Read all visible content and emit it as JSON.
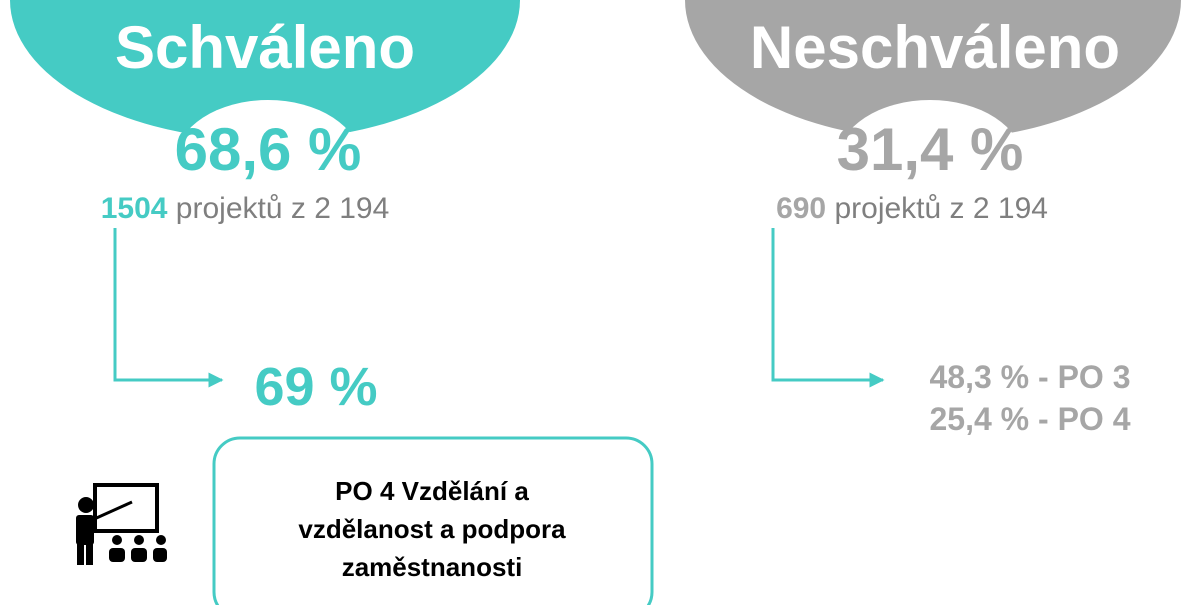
{
  "approved": {
    "title": "Schváleno",
    "percent": "68,6 %",
    "count": "1504",
    "count_text": " projektů z 2 194",
    "share": "69 %",
    "box_lines": [
      "PO 4 Vzdělání a",
      "vzdělanost a podpora",
      "zaměstnanosti"
    ]
  },
  "rejected": {
    "title": "Neschváleno",
    "percent": "31,4 %",
    "count": "690",
    "count_text": " projektů z 2 194",
    "shares": [
      "48,3 % - PO 3",
      "25,4 % - PO 4"
    ]
  }
}
